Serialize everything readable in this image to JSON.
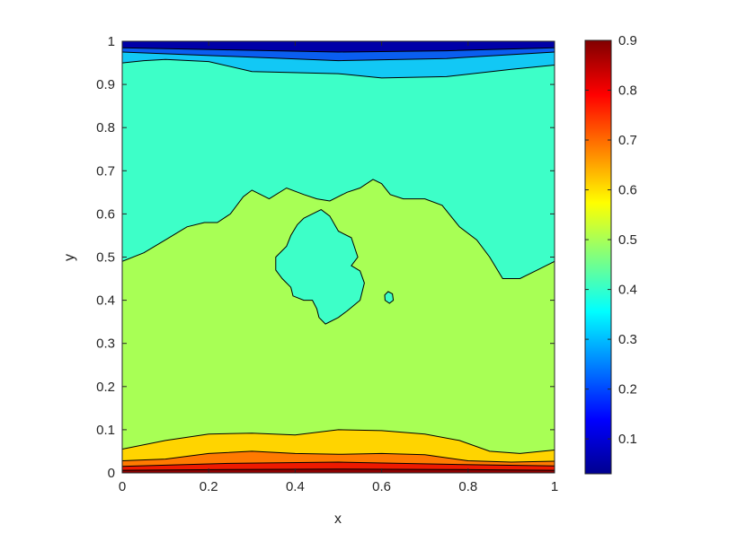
{
  "chart_data": {
    "type": "contour",
    "title": "",
    "xlabel": "x",
    "ylabel": "y",
    "xlim": [
      0,
      1
    ],
    "ylim": [
      0,
      1
    ],
    "xticks": [
      "0",
      "0.2",
      "0.4",
      "0.6",
      "0.8",
      "1"
    ],
    "yticks": [
      "0",
      "0.1",
      "0.2",
      "0.3",
      "0.4",
      "0.5",
      "0.6",
      "0.7",
      "0.8",
      "0.9",
      "1"
    ],
    "colormap": "jet",
    "colorbar": {
      "range": [
        0.03,
        0.9
      ],
      "ticks": [
        "0.1",
        "0.2",
        "0.3",
        "0.4",
        "0.5",
        "0.6",
        "0.7",
        "0.8",
        "0.9"
      ],
      "placement": "right"
    },
    "regions": [
      {
        "name": "top-dark-blue",
        "value": 0.06,
        "color": "#0000a8"
      },
      {
        "name": "top-blue",
        "value": 0.2,
        "color": "#0a5ef0"
      },
      {
        "name": "top-cyan",
        "value": 0.32,
        "color": "#12c8f5"
      },
      {
        "name": "upper-teal",
        "value": 0.4,
        "color": "#3dffc8"
      },
      {
        "name": "middle-green",
        "value": 0.5,
        "color": "#a8ff55"
      },
      {
        "name": "lower-yellow",
        "value": 0.6,
        "color": "#ffd400"
      },
      {
        "name": "lower-orange",
        "value": 0.7,
        "color": "#ff7a00"
      },
      {
        "name": "lower-red",
        "value": 0.8,
        "color": "#ee1a00"
      },
      {
        "name": "bottom-dark-red",
        "value": 0.88,
        "color": "#8f0000"
      }
    ],
    "contour_levels": [
      {
        "name": "top-1",
        "points": [
          [
            0,
            0.985
          ],
          [
            0.25,
            0.98
          ],
          [
            0.5,
            0.975
          ],
          [
            0.75,
            0.978
          ],
          [
            1,
            0.985
          ]
        ]
      },
      {
        "name": "top-2",
        "points": [
          [
            0,
            0.975
          ],
          [
            0.25,
            0.965
          ],
          [
            0.5,
            0.955
          ],
          [
            0.75,
            0.96
          ],
          [
            1,
            0.975
          ]
        ]
      },
      {
        "name": "top-3",
        "points": [
          [
            0,
            0.95
          ],
          [
            0.05,
            0.955
          ],
          [
            0.1,
            0.958
          ],
          [
            0.2,
            0.953
          ],
          [
            0.3,
            0.93
          ],
          [
            0.5,
            0.925
          ],
          [
            0.6,
            0.915
          ],
          [
            0.75,
            0.918
          ],
          [
            0.9,
            0.935
          ],
          [
            1,
            0.945
          ]
        ]
      },
      {
        "name": "mid-boundary",
        "points": [
          [
            0,
            0.49
          ],
          [
            0.05,
            0.51
          ],
          [
            0.1,
            0.54
          ],
          [
            0.15,
            0.57
          ],
          [
            0.19,
            0.58
          ],
          [
            0.22,
            0.58
          ],
          [
            0.25,
            0.6
          ],
          [
            0.28,
            0.64
          ],
          [
            0.3,
            0.655
          ],
          [
            0.34,
            0.635
          ],
          [
            0.38,
            0.66
          ],
          [
            0.42,
            0.645
          ],
          [
            0.45,
            0.635
          ],
          [
            0.48,
            0.63
          ],
          [
            0.52,
            0.65
          ],
          [
            0.55,
            0.66
          ],
          [
            0.58,
            0.68
          ],
          [
            0.6,
            0.67
          ],
          [
            0.62,
            0.645
          ],
          [
            0.65,
            0.635
          ],
          [
            0.7,
            0.635
          ],
          [
            0.74,
            0.62
          ],
          [
            0.78,
            0.57
          ],
          [
            0.82,
            0.54
          ],
          [
            0.85,
            0.5
          ],
          [
            0.88,
            0.45
          ],
          [
            0.92,
            0.45
          ],
          [
            0.96,
            0.47
          ],
          [
            1,
            0.49
          ]
        ]
      },
      {
        "name": "lower-1",
        "points": [
          [
            0,
            0.055
          ],
          [
            0.1,
            0.075
          ],
          [
            0.2,
            0.09
          ],
          [
            0.3,
            0.092
          ],
          [
            0.4,
            0.088
          ],
          [
            0.5,
            0.1
          ],
          [
            0.6,
            0.098
          ],
          [
            0.7,
            0.09
          ],
          [
            0.78,
            0.075
          ],
          [
            0.85,
            0.05
          ],
          [
            0.92,
            0.045
          ],
          [
            1,
            0.053
          ]
        ]
      },
      {
        "name": "lower-2",
        "points": [
          [
            0,
            0.028
          ],
          [
            0.1,
            0.032
          ],
          [
            0.2,
            0.045
          ],
          [
            0.3,
            0.05
          ],
          [
            0.4,
            0.045
          ],
          [
            0.5,
            0.043
          ],
          [
            0.6,
            0.045
          ],
          [
            0.7,
            0.042
          ],
          [
            0.8,
            0.028
          ],
          [
            0.9,
            0.025
          ],
          [
            1,
            0.027
          ]
        ]
      },
      {
        "name": "lower-3",
        "points": [
          [
            0,
            0.015
          ],
          [
            0.25,
            0.022
          ],
          [
            0.5,
            0.025
          ],
          [
            0.75,
            0.02
          ],
          [
            1,
            0.016
          ]
        ]
      },
      {
        "name": "lower-4",
        "points": [
          [
            0,
            0.006
          ],
          [
            0.25,
            0.008
          ],
          [
            0.5,
            0.009
          ],
          [
            0.75,
            0.008
          ],
          [
            1,
            0.006
          ]
        ]
      }
    ],
    "islands": [
      {
        "name": "teal-island-large",
        "value": 0.4,
        "points": [
          [
            0.42,
            0.59
          ],
          [
            0.46,
            0.61
          ],
          [
            0.48,
            0.595
          ],
          [
            0.5,
            0.56
          ],
          [
            0.53,
            0.545
          ],
          [
            0.545,
            0.5
          ],
          [
            0.53,
            0.48
          ],
          [
            0.55,
            0.468
          ],
          [
            0.56,
            0.44
          ],
          [
            0.55,
            0.4
          ],
          [
            0.52,
            0.375
          ],
          [
            0.5,
            0.36
          ],
          [
            0.47,
            0.345
          ],
          [
            0.455,
            0.36
          ],
          [
            0.45,
            0.38
          ],
          [
            0.44,
            0.4
          ],
          [
            0.42,
            0.4
          ],
          [
            0.395,
            0.41
          ],
          [
            0.39,
            0.43
          ],
          [
            0.37,
            0.45
          ],
          [
            0.355,
            0.47
          ],
          [
            0.355,
            0.5
          ],
          [
            0.38,
            0.525
          ],
          [
            0.39,
            0.55
          ],
          [
            0.405,
            0.575
          ]
        ]
      },
      {
        "name": "teal-island-small",
        "value": 0.4,
        "points": [
          [
            0.615,
            0.42
          ],
          [
            0.625,
            0.415
          ],
          [
            0.627,
            0.4
          ],
          [
            0.618,
            0.393
          ],
          [
            0.608,
            0.4
          ],
          [
            0.607,
            0.412
          ]
        ]
      }
    ]
  }
}
